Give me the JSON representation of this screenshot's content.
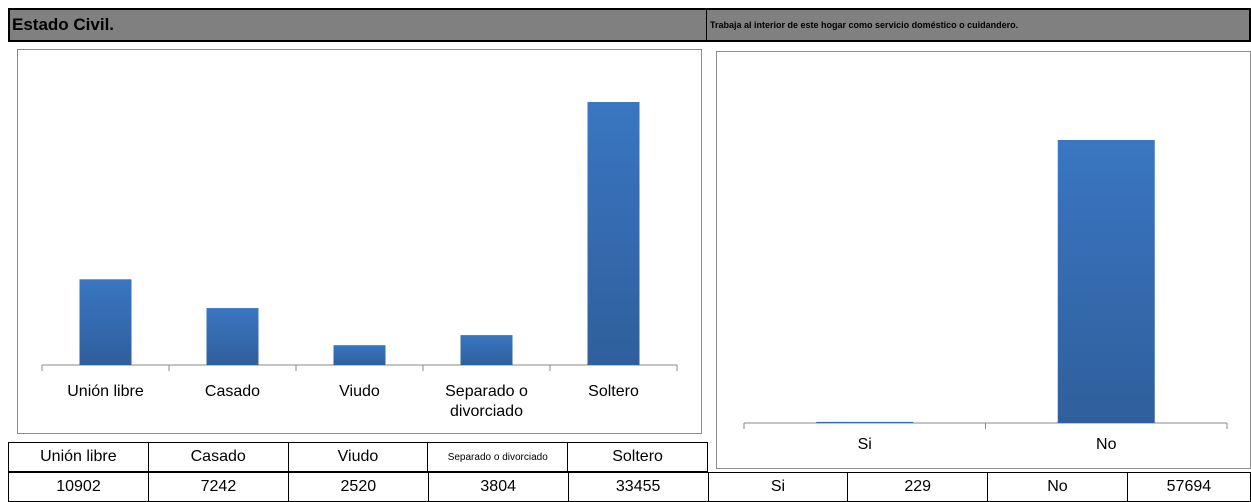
{
  "header": {
    "left_title": "Estado Civil.",
    "right_title": "Trabaja al interior de este hogar como servicio doméstico o cuidandero."
  },
  "chart_data": [
    {
      "type": "bar",
      "categories": [
        "Unión libre",
        "Casado",
        "Viudo",
        "Separado o divorciado",
        "Soltero"
      ],
      "category_lines": [
        [
          "Unión libre"
        ],
        [
          "Casado"
        ],
        [
          "Viudo"
        ],
        [
          "Separado o",
          "divorciado"
        ],
        [
          "Soltero"
        ]
      ],
      "values": [
        10902,
        7242,
        2520,
        3804,
        33455
      ],
      "color": "#3a76c2"
    },
    {
      "type": "bar",
      "categories": [
        "Si",
        "No"
      ],
      "values": [
        229,
        57694
      ],
      "color": "#3a76c2"
    }
  ],
  "table_left": {
    "headers": [
      "Unión libre",
      "Casado",
      "Viudo",
      "Separado o divorciado",
      "Soltero"
    ]
  },
  "table_values": {
    "row": [
      "10902",
      "7242",
      "2520",
      "3804",
      "33455",
      "Si",
      "229",
      "No",
      "57694"
    ]
  }
}
